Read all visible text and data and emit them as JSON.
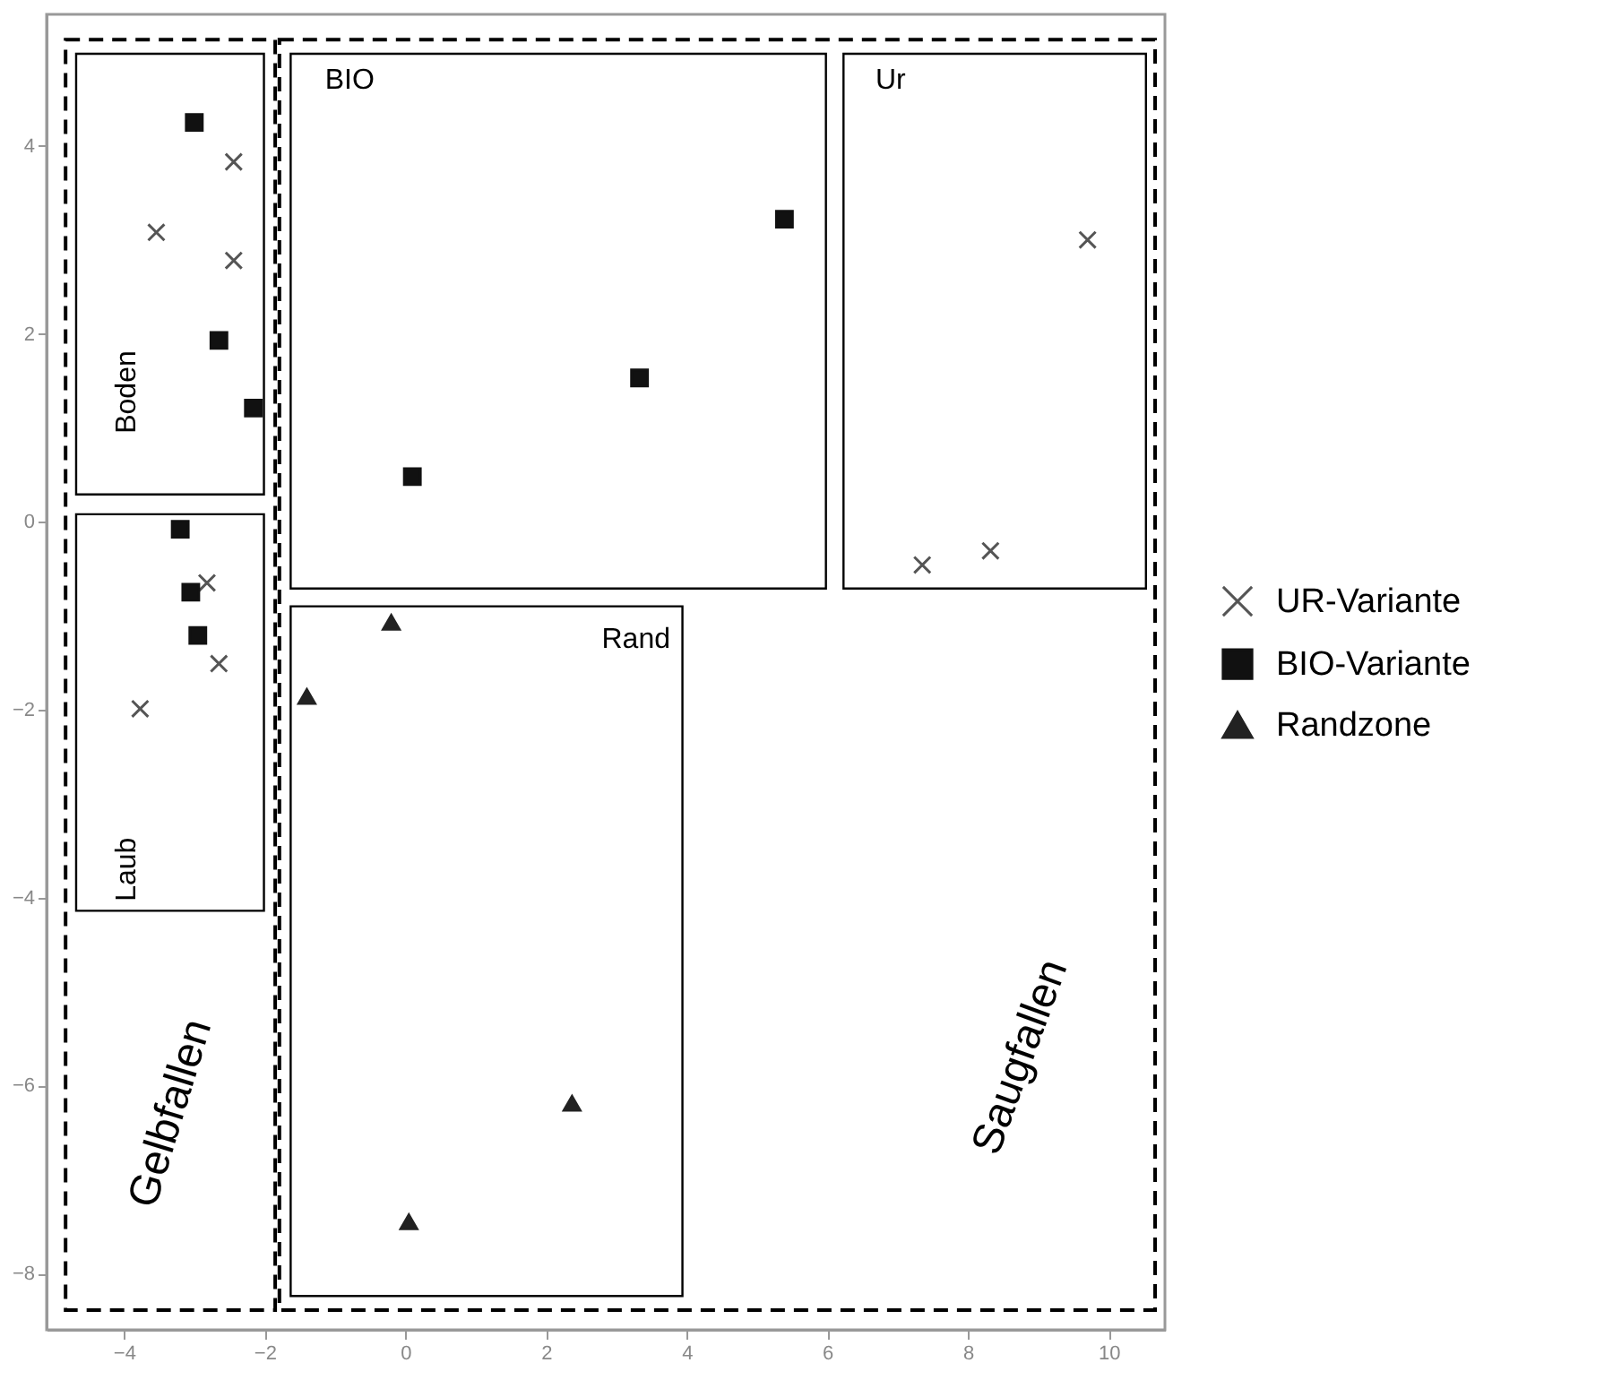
{
  "chart_data": {
    "type": "scatter",
    "xlim": [
      -5.1,
      10.8
    ],
    "ylim": [
      -8.6,
      5.4
    ],
    "xticks": [
      -4,
      -2,
      0,
      2,
      4,
      6,
      8,
      10
    ],
    "yticks": [
      -8,
      -6,
      -4,
      -2,
      0,
      2,
      4
    ],
    "legend": "right",
    "series": [
      {
        "name": "UR-Variante",
        "color": "#555555",
        "marker": "cross",
        "x": [
          -2.44,
          -3.54,
          -2.44,
          -2.82,
          -2.65,
          -3.77,
          7.35,
          8.32,
          9.7
        ],
        "values": [
          3.83,
          3.08,
          2.78,
          -0.65,
          -1.51,
          -1.99,
          -0.46,
          -0.31,
          3.0
        ]
      },
      {
        "name": "BIO-Variante",
        "color": "#111111",
        "marker": "square",
        "x": [
          -3.0,
          -2.65,
          -2.16,
          -3.2,
          -3.05,
          -2.95,
          0.1,
          3.33,
          5.39
        ],
        "values": [
          4.25,
          1.93,
          1.21,
          -0.08,
          -0.75,
          -1.21,
          0.48,
          1.53,
          3.22
        ]
      },
      {
        "name": "Randzone",
        "color": "#222222",
        "marker": "triangle",
        "x": [
          -1.4,
          -0.2,
          2.37,
          0.05
        ],
        "values": [
          -1.86,
          -1.07,
          -6.19,
          -7.45
        ]
      }
    ],
    "annotations": [
      "Boden",
      "Laub",
      "BIO",
      "Ur",
      "Rand",
      "Gelbfallen",
      "Saugfallen"
    ]
  }
}
